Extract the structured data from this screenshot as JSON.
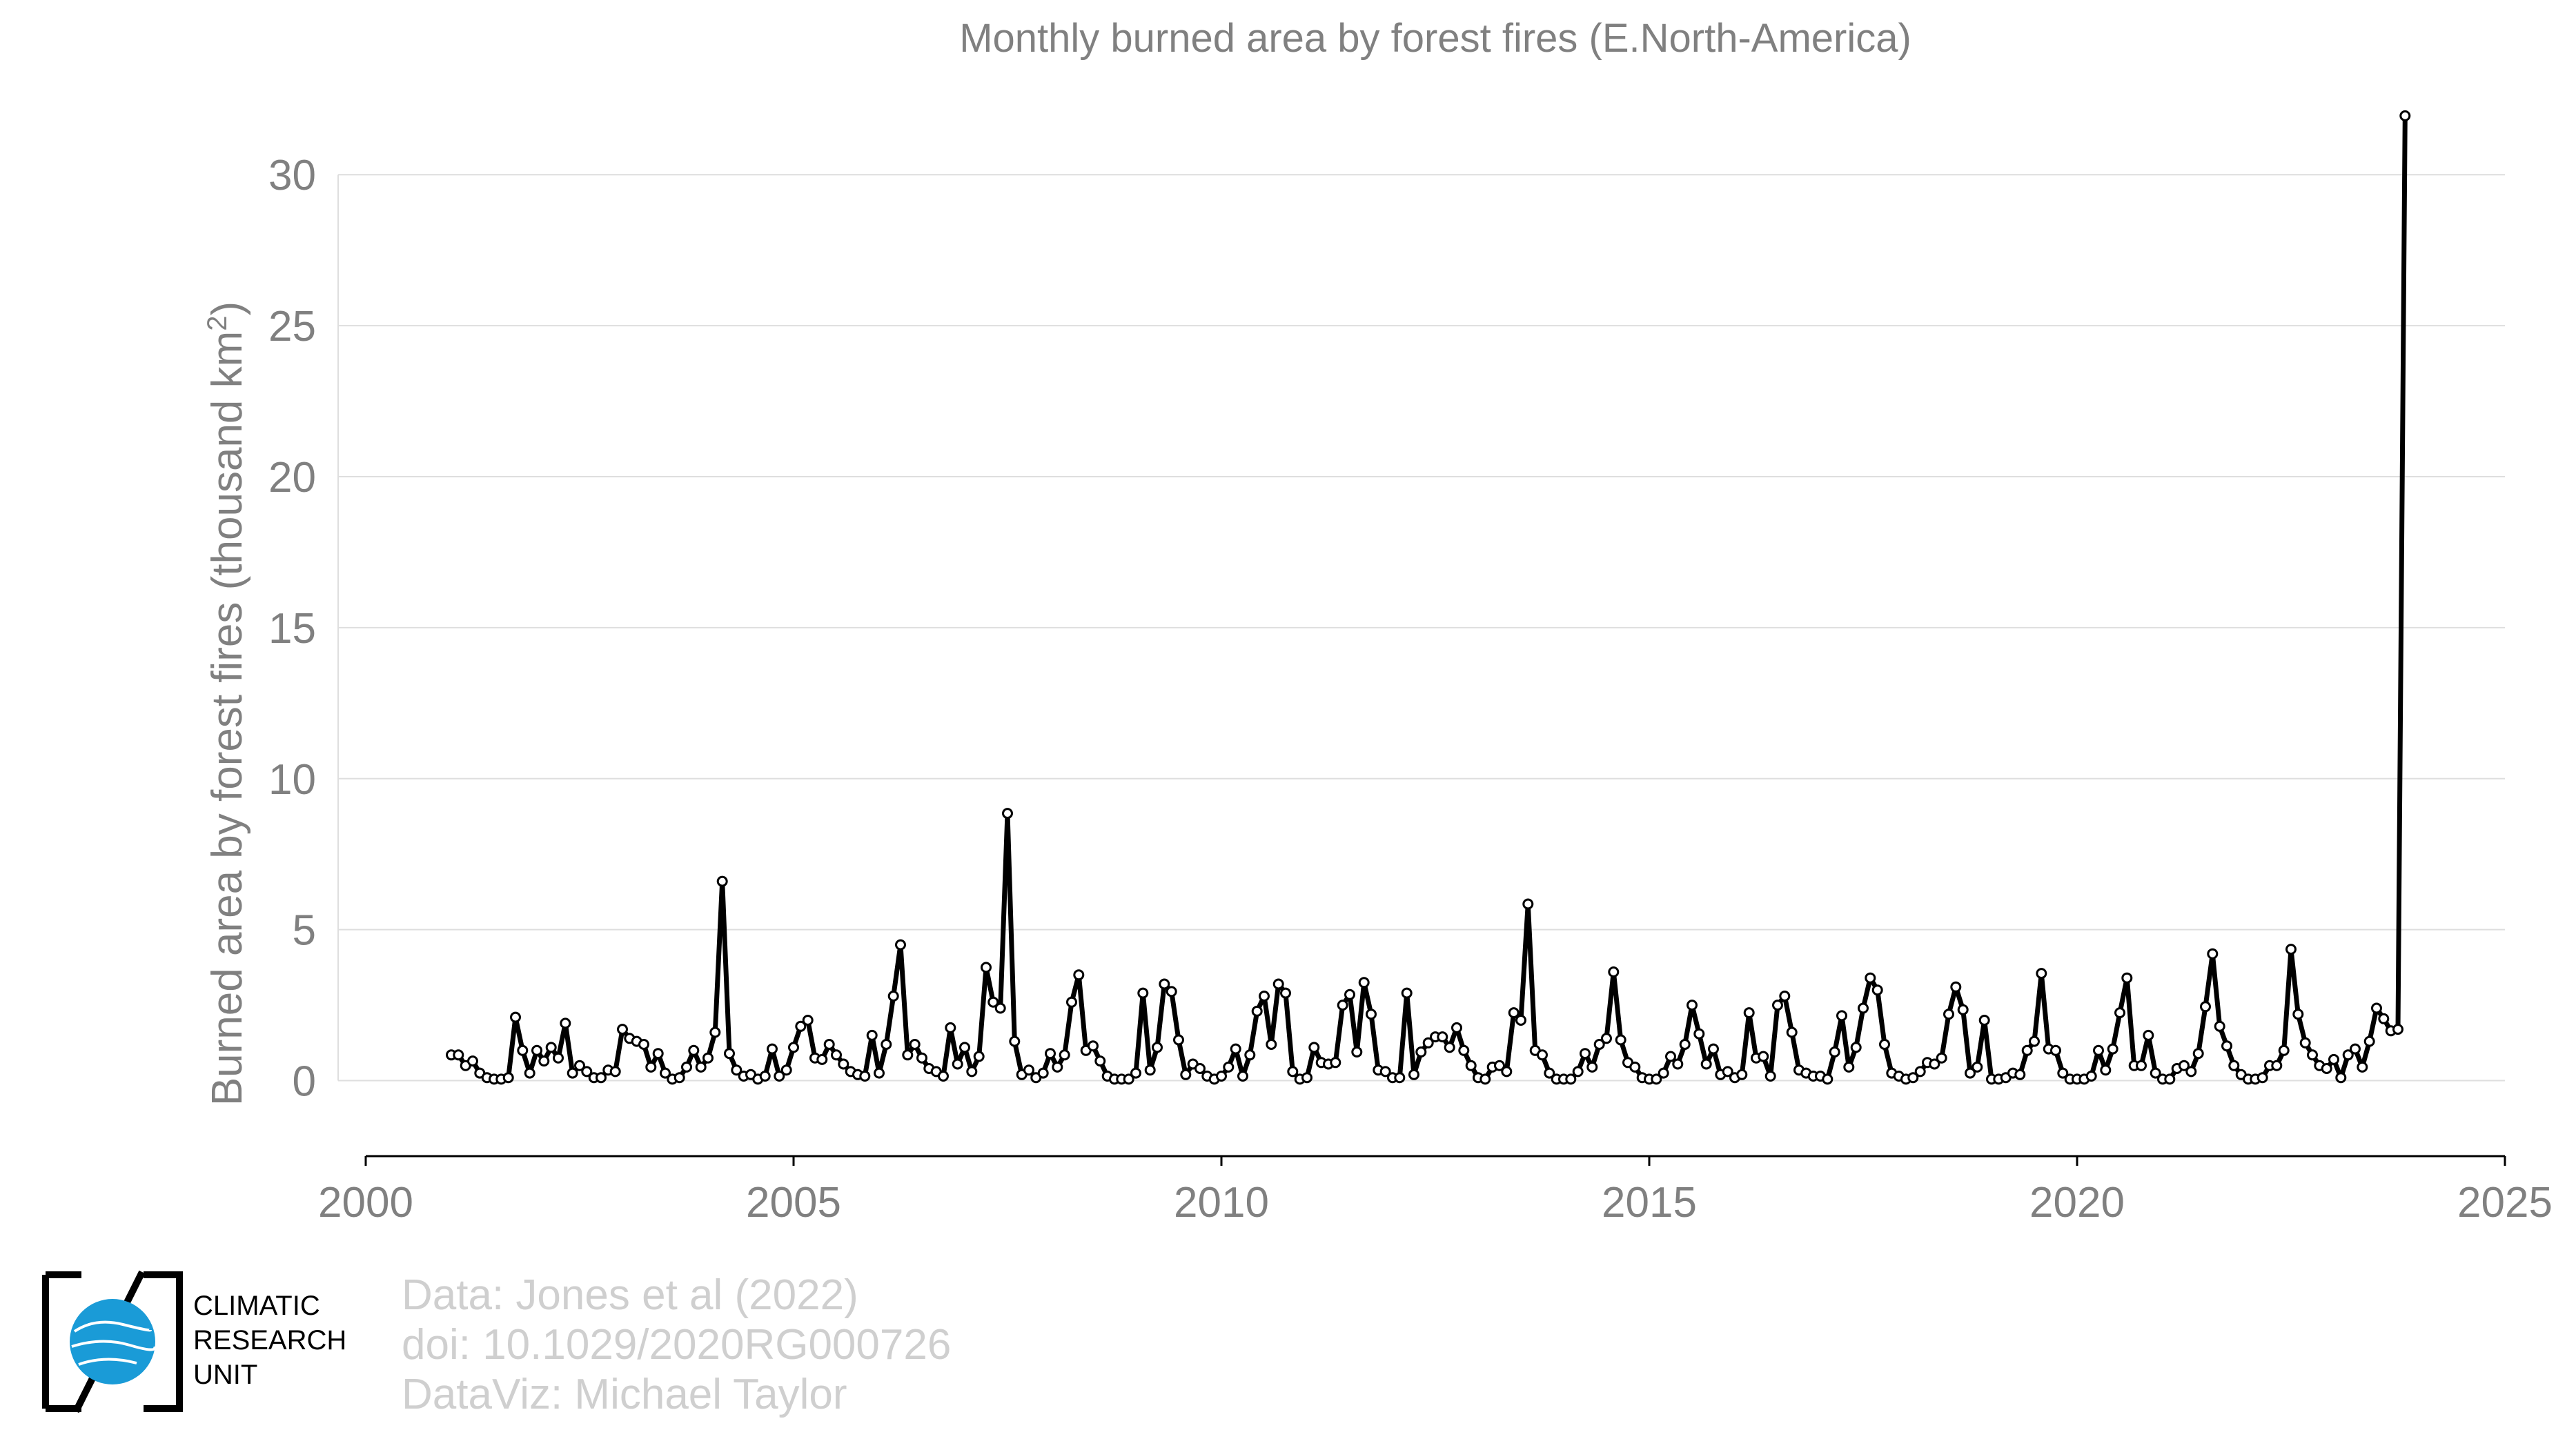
{
  "chart_data": {
    "type": "line",
    "title": "Monthly burned area by forest fires (E.North-America)",
    "ylabel": "Burned area by forest fires (thousand km",
    "ylabel_sup": "2",
    "ylabel_close": ")",
    "xlim": [
      2000,
      2025
    ],
    "ylim": [
      -2.5,
      33.5
    ],
    "x_ticks": [
      2000,
      2005,
      2010,
      2015,
      2020,
      2025
    ],
    "y_ticks": [
      0,
      5,
      10,
      15,
      20,
      25,
      30
    ],
    "grid": true,
    "legend": "none",
    "colors": {
      "line": "#000000",
      "marker_fill": "#ffffff",
      "grid": "#dedede",
      "text": "#808080"
    },
    "series": [
      {
        "start": "2001-01",
        "frequency": "monthly",
        "values": [
          0.85,
          0.85,
          0.5,
          0.65,
          0.25,
          0.1,
          0.05,
          0.05,
          0.1,
          2.1,
          1.0,
          0.25,
          1.0,
          0.65,
          1.1,
          0.75,
          1.9,
          0.25,
          0.5,
          0.3,
          0.1,
          0.1,
          0.35,
          0.3,
          1.7,
          1.4,
          1.3,
          1.2,
          0.45,
          0.9,
          0.25,
          0.05,
          0.1,
          0.45,
          1.0,
          0.45,
          0.75,
          1.6,
          6.6,
          0.9,
          0.35,
          0.15,
          0.2,
          0.05,
          0.15,
          1.05,
          0.15,
          0.35,
          1.1,
          1.8,
          2.0,
          0.75,
          0.7,
          1.2,
          0.85,
          0.55,
          0.3,
          0.2,
          0.15,
          1.5,
          0.25,
          1.2,
          2.8,
          4.5,
          0.85,
          1.2,
          0.75,
          0.4,
          0.3,
          0.15,
          1.75,
          0.55,
          1.1,
          0.3,
          0.8,
          3.75,
          2.6,
          2.4,
          8.85,
          1.3,
          0.2,
          0.35,
          0.1,
          0.25,
          0.9,
          0.45,
          0.85,
          2.6,
          3.5,
          1.0,
          1.15,
          0.65,
          0.15,
          0.05,
          0.05,
          0.05,
          0.25,
          2.9,
          0.35,
          1.1,
          3.2,
          2.95,
          1.35,
          0.2,
          0.55,
          0.4,
          0.15,
          0.05,
          0.15,
          0.45,
          1.05,
          0.15,
          0.85,
          2.3,
          2.8,
          1.2,
          3.2,
          2.9,
          0.3,
          0.05,
          0.1,
          1.1,
          0.6,
          0.55,
          0.6,
          2.5,
          2.85,
          0.95,
          3.25,
          2.2,
          0.35,
          0.3,
          0.1,
          0.1,
          2.9,
          0.2,
          0.95,
          1.25,
          1.45,
          1.45,
          1.1,
          1.75,
          1.0,
          0.5,
          0.1,
          0.05,
          0.45,
          0.5,
          0.3,
          2.25,
          2.0,
          5.85,
          1.0,
          0.85,
          0.25,
          0.05,
          0.05,
          0.05,
          0.3,
          0.9,
          0.45,
          1.2,
          1.4,
          3.6,
          1.35,
          0.6,
          0.45,
          0.1,
          0.05,
          0.05,
          0.25,
          0.8,
          0.55,
          1.2,
          2.5,
          1.55,
          0.55,
          1.05,
          0.2,
          0.3,
          0.1,
          0.2,
          2.25,
          0.75,
          0.8,
          0.15,
          2.5,
          2.8,
          1.6,
          0.35,
          0.25,
          0.15,
          0.15,
          0.05,
          0.95,
          2.15,
          0.45,
          1.1,
          2.4,
          3.4,
          3.0,
          1.2,
          0.25,
          0.15,
          0.05,
          0.1,
          0.3,
          0.6,
          0.55,
          0.75,
          2.2,
          3.1,
          2.35,
          0.25,
          0.45,
          2.0,
          0.05,
          0.05,
          0.1,
          0.25,
          0.2,
          1.0,
          1.3,
          3.55,
          1.05,
          1.0,
          0.25,
          0.05,
          0.05,
          0.05,
          0.15,
          1.0,
          0.35,
          1.05,
          2.25,
          3.4,
          0.5,
          0.5,
          1.5,
          0.25,
          0.05,
          0.05,
          0.4,
          0.5,
          0.3,
          0.9,
          2.45,
          4.2,
          1.8,
          1.15,
          0.5,
          0.2,
          0.05,
          0.05,
          0.1,
          0.5,
          0.5,
          1.0,
          4.35,
          2.2,
          1.25,
          0.85,
          0.5,
          0.4,
          0.7,
          0.1,
          0.85,
          1.05,
          0.45,
          1.3,
          2.4,
          2.05,
          1.65,
          1.7,
          31.95
        ]
      }
    ]
  },
  "credits": {
    "line1": "Data: Jones et al (2022)",
    "line2": "doi: 10.1029/2020RG000726",
    "line3": "DataViz: Michael Taylor"
  },
  "logo": {
    "icon": "globe-icon",
    "line1": "CLIMATIC",
    "line2": "RESEARCH",
    "line3": "UNIT",
    "color": "#1a9bd7"
  }
}
